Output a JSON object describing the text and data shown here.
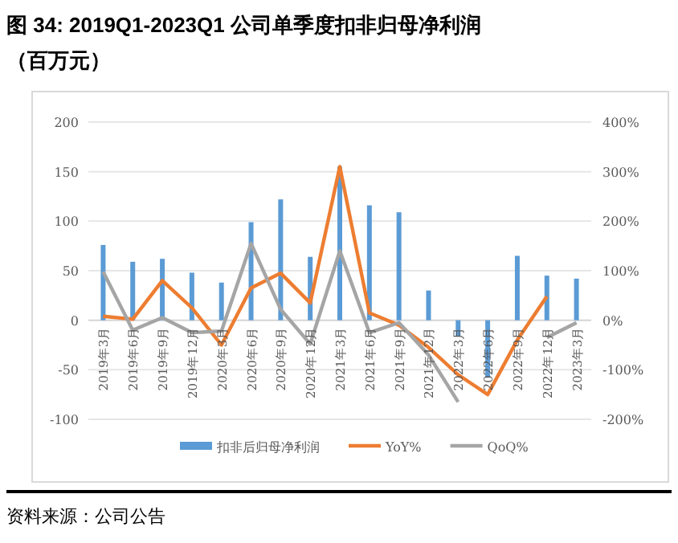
{
  "chart_data": {
    "type": "bar",
    "title": "图 34: 2019Q1-2023Q1 公司单季度扣非归母净利润（百万元）",
    "annotations": [
      "资料来源：公司公告"
    ],
    "categories": [
      "2019年3月",
      "2019年6月",
      "2019年9月",
      "2019年12月",
      "2020年3月",
      "2020年6月",
      "2020年9月",
      "2020年12月",
      "2021年3月",
      "2021年6月",
      "2021年9月",
      "2021年12月",
      "2022年3月",
      "2022年6月",
      "2022年9月",
      "2022年12月",
      "2023年3月"
    ],
    "series": [
      {
        "name": "扣非后归母净利润",
        "color": "#5b9bd5",
        "values": [
          76,
          59,
          62,
          48,
          38,
          99,
          122,
          64,
          155,
          116,
          109,
          30,
          -16,
          -58,
          65,
          45,
          42
        ]
      },
      {
        "name": "YoY%",
        "type": "line",
        "axis": "y2",
        "color": "#ed7d31",
        "values": [
          8,
          2,
          80,
          25,
          -50,
          65,
          95,
          35,
          310,
          15,
          -10,
          -55,
          -110,
          -150,
          -40,
          48,
          null
        ]
      },
      {
        "name": "QoQ%",
        "type": "line",
        "axis": "y2",
        "color": "#a5a5a5",
        "values": [
          98,
          -20,
          5,
          -25,
          -22,
          155,
          22,
          -48,
          140,
          -25,
          -5,
          -70,
          -165,
          null,
          null,
          -35,
          -5
        ]
      }
    ],
    "ylim": [
      -100,
      200
    ],
    "yticks": [
      -100,
      -50,
      0,
      50,
      100,
      150,
      200
    ],
    "y2lim": [
      -200,
      400
    ],
    "y2ticks": [
      {
        "value": -200,
        "label": "-200%"
      },
      {
        "value": -100,
        "label": "-100%"
      },
      {
        "value": 0,
        "label": "0%"
      },
      {
        "value": 100,
        "label": "100%"
      },
      {
        "value": 200,
        "label": "200%"
      },
      {
        "value": 300,
        "label": "300%"
      },
      {
        "value": 400,
        "label": "400%"
      }
    ],
    "grid": "y",
    "legend": "bottom"
  }
}
